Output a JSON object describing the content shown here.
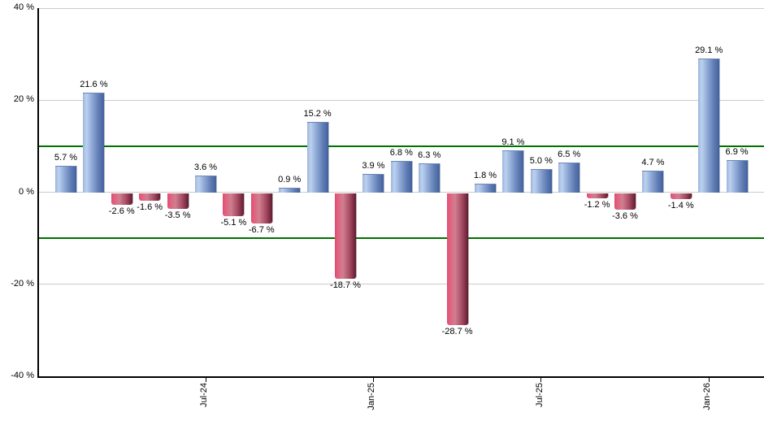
{
  "chart_data": {
    "type": "bar",
    "title": "",
    "unit": "%",
    "grid": true,
    "legend": false,
    "bars": [
      {
        "value": 5.7,
        "label": "5.7 %"
      },
      {
        "value": 21.6,
        "label": "21.6 %"
      },
      {
        "value": -2.6,
        "label": "-2.6 %"
      },
      {
        "value": -1.6,
        "label": "-1.6 %"
      },
      {
        "value": -3.5,
        "label": "-3.5 %"
      },
      {
        "value": 3.6,
        "label": "3.6 %"
      },
      {
        "value": -5.1,
        "label": "-5.1 %"
      },
      {
        "value": -6.7,
        "label": "-6.7 %"
      },
      {
        "value": 0.9,
        "label": "0.9 %"
      },
      {
        "value": 15.2,
        "label": "15.2 %"
      },
      {
        "value": -18.7,
        "label": "-18.7 %"
      },
      {
        "value": 3.9,
        "label": "3.9 %"
      },
      {
        "value": 6.8,
        "label": "6.8 %"
      },
      {
        "value": 6.3,
        "label": "6.3 %"
      },
      {
        "value": -28.7,
        "label": "-28.7 %"
      },
      {
        "value": 1.8,
        "label": "1.8 %"
      },
      {
        "value": 9.1,
        "label": "9.1 %"
      },
      {
        "value": 5.0,
        "label": "5.0 %"
      },
      {
        "value": 6.5,
        "label": "6.5 %"
      },
      {
        "value": -1.2,
        "label": "-1.2 %"
      },
      {
        "value": -3.6,
        "label": "-3.6 %"
      },
      {
        "value": 4.7,
        "label": "4.7 %"
      },
      {
        "value": -1.4,
        "label": "-1.4 %"
      },
      {
        "value": 29.1,
        "label": "29.1 %"
      },
      {
        "value": 6.9,
        "label": "6.9 %"
      }
    ],
    "x_axis": {
      "tick_labels": [
        {
          "bar_index": 5,
          "label": "Jul-24"
        },
        {
          "bar_index": 11,
          "label": "Jan-25"
        },
        {
          "bar_index": 17,
          "label": "Jul-25"
        },
        {
          "bar_index": 23,
          "label": "Jan-26"
        }
      ]
    },
    "y_axis": {
      "min": -40,
      "max": 40,
      "ticks": [
        {
          "value": 40,
          "label": "40 %"
        },
        {
          "value": 20,
          "label": "20 %"
        },
        {
          "value": 0,
          "label": "0 %"
        },
        {
          "value": -20,
          "label": "-20 %"
        },
        {
          "value": -40,
          "label": "-40 %"
        }
      ]
    },
    "threshold_lines": [
      {
        "value": 10
      },
      {
        "value": -10
      }
    ],
    "colors": {
      "positive_bar_gradient": [
        "#9db4dc",
        "#bdd2f0",
        "#8ca6d4",
        "#5f7cb4",
        "#42619c"
      ],
      "negative_bar_gradient": [
        "#e2496e",
        "#d07f91",
        "#a84b62",
        "#5f1c31"
      ],
      "gridline": "#cbcbcb",
      "threshold_line": "#007200",
      "axis_line": "#000000",
      "label_text": "#000000",
      "background": "#ffffff"
    }
  }
}
